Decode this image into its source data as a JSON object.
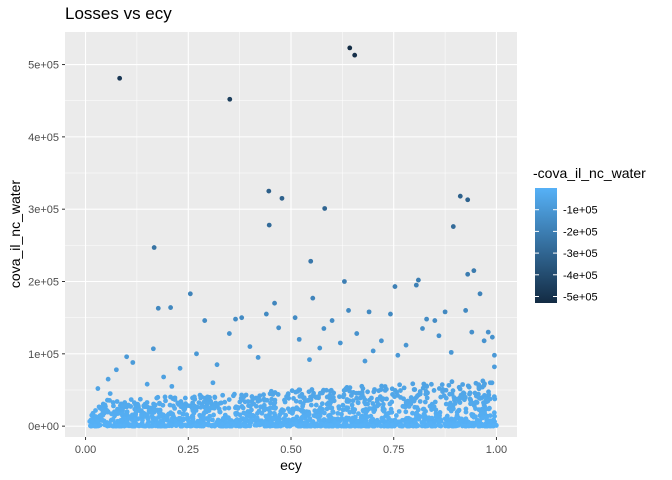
{
  "chart_data": {
    "type": "scatter",
    "title": "Losses vs ecy",
    "xlabel": "ecy",
    "ylabel": "cova_il_nc_water",
    "xlim": [
      -0.05,
      1.05
    ],
    "ylim": [
      -15000,
      545000
    ],
    "x_ticks": [
      0.0,
      0.25,
      0.5,
      0.75,
      1.0
    ],
    "x_tick_labels": [
      "0.00",
      "0.25",
      "0.50",
      "0.75",
      "1.00"
    ],
    "y_ticks": [
      0,
      100000,
      200000,
      300000,
      400000,
      500000
    ],
    "y_tick_labels": [
      "0e+00",
      "1e+05",
      "2e+05",
      "3e+05",
      "4e+05",
      "5e+05"
    ],
    "grid": true,
    "background": "#ebebeb",
    "legend": {
      "title": "-cova_il_nc_water",
      "placement": "right",
      "type": "colorbar",
      "range": [
        -530000,
        0
      ],
      "tick_values": [
        -100000,
        -200000,
        -300000,
        -400000,
        -500000
      ],
      "tick_labels": [
        "-1e+05",
        "-2e+05",
        "-3e+05",
        "-4e+05",
        "-5e+05"
      ],
      "color_low": "#132b43",
      "color_high": "#56b1f7"
    },
    "points": [
      {
        "x": 0.083,
        "y": 481000
      },
      {
        "x": 0.351,
        "y": 452000
      },
      {
        "x": 0.643,
        "y": 523000
      },
      {
        "x": 0.655,
        "y": 513000
      },
      {
        "x": 0.446,
        "y": 325000
      },
      {
        "x": 0.478,
        "y": 315000
      },
      {
        "x": 0.582,
        "y": 301000
      },
      {
        "x": 0.447,
        "y": 278000
      },
      {
        "x": 0.167,
        "y": 247000
      },
      {
        "x": 0.912,
        "y": 318000
      },
      {
        "x": 0.93,
        "y": 313000
      },
      {
        "x": 0.895,
        "y": 276000
      },
      {
        "x": 0.548,
        "y": 228000
      },
      {
        "x": 0.63,
        "y": 200000
      },
      {
        "x": 0.805,
        "y": 195000
      },
      {
        "x": 0.81,
        "y": 202000
      },
      {
        "x": 0.93,
        "y": 210000
      },
      {
        "x": 0.945,
        "y": 215000
      },
      {
        "x": 0.255,
        "y": 183000
      },
      {
        "x": 0.553,
        "y": 177000
      },
      {
        "x": 0.753,
        "y": 193000
      },
      {
        "x": 0.177,
        "y": 163000
      },
      {
        "x": 0.207,
        "y": 164000
      },
      {
        "x": 0.46,
        "y": 170000
      },
      {
        "x": 0.96,
        "y": 183000
      },
      {
        "x": 0.925,
        "y": 160000
      },
      {
        "x": 0.64,
        "y": 160000
      },
      {
        "x": 0.69,
        "y": 158000
      },
      {
        "x": 0.875,
        "y": 158000
      },
      {
        "x": 0.38,
        "y": 150000
      },
      {
        "x": 0.44,
        "y": 155000
      },
      {
        "x": 0.51,
        "y": 150000
      },
      {
        "x": 0.742,
        "y": 155000
      },
      {
        "x": 0.29,
        "y": 146000
      },
      {
        "x": 0.365,
        "y": 148000
      },
      {
        "x": 0.83,
        "y": 148000
      },
      {
        "x": 0.85,
        "y": 146000
      },
      {
        "x": 0.6,
        "y": 146000
      },
      {
        "x": 0.98,
        "y": 130000
      },
      {
        "x": 0.99,
        "y": 123000
      },
      {
        "x": 0.1,
        "y": 96000
      },
      {
        "x": 0.165,
        "y": 107000
      },
      {
        "x": 0.115,
        "y": 88000
      },
      {
        "x": 0.075,
        "y": 78000
      },
      {
        "x": 0.055,
        "y": 65000
      },
      {
        "x": 0.03,
        "y": 52000
      },
      {
        "x": 0.015,
        "y": 15000
      },
      {
        "x": 0.06,
        "y": 45000
      },
      {
        "x": 0.19,
        "y": 68000
      },
      {
        "x": 0.23,
        "y": 80000
      },
      {
        "x": 0.27,
        "y": 100000
      },
      {
        "x": 0.32,
        "y": 85000
      },
      {
        "x": 0.4,
        "y": 110000
      },
      {
        "x": 0.42,
        "y": 95000
      },
      {
        "x": 0.52,
        "y": 120000
      },
      {
        "x": 0.57,
        "y": 108000
      },
      {
        "x": 0.62,
        "y": 115000
      },
      {
        "x": 0.66,
        "y": 128000
      },
      {
        "x": 0.7,
        "y": 104000
      },
      {
        "x": 0.72,
        "y": 118000
      },
      {
        "x": 0.78,
        "y": 112000
      },
      {
        "x": 0.82,
        "y": 135000
      },
      {
        "x": 0.86,
        "y": 125000
      },
      {
        "x": 0.94,
        "y": 130000
      },
      {
        "x": 0.97,
        "y": 118000
      },
      {
        "x": 0.995,
        "y": 98000
      },
      {
        "x": 0.995,
        "y": 82000
      },
      {
        "x": 0.985,
        "y": 60000
      },
      {
        "x": 0.35,
        "y": 128000
      },
      {
        "x": 0.47,
        "y": 136000
      },
      {
        "x": 0.58,
        "y": 135000
      },
      {
        "x": 0.545,
        "y": 92000
      },
      {
        "x": 0.15,
        "y": 58000
      },
      {
        "x": 0.21,
        "y": 55000
      },
      {
        "x": 0.31,
        "y": 60000
      },
      {
        "x": 0.89,
        "y": 102000
      },
      {
        "x": 0.76,
        "y": 98000
      },
      {
        "x": 0.68,
        "y": 90000
      }
    ],
    "dense_cloud": {
      "count": 1500,
      "x_range": [
        0.01,
        1.0
      ],
      "y_floor": 0,
      "y_ceiling_at_x0": 35000,
      "y_ceiling_at_x1": 65000
    }
  }
}
